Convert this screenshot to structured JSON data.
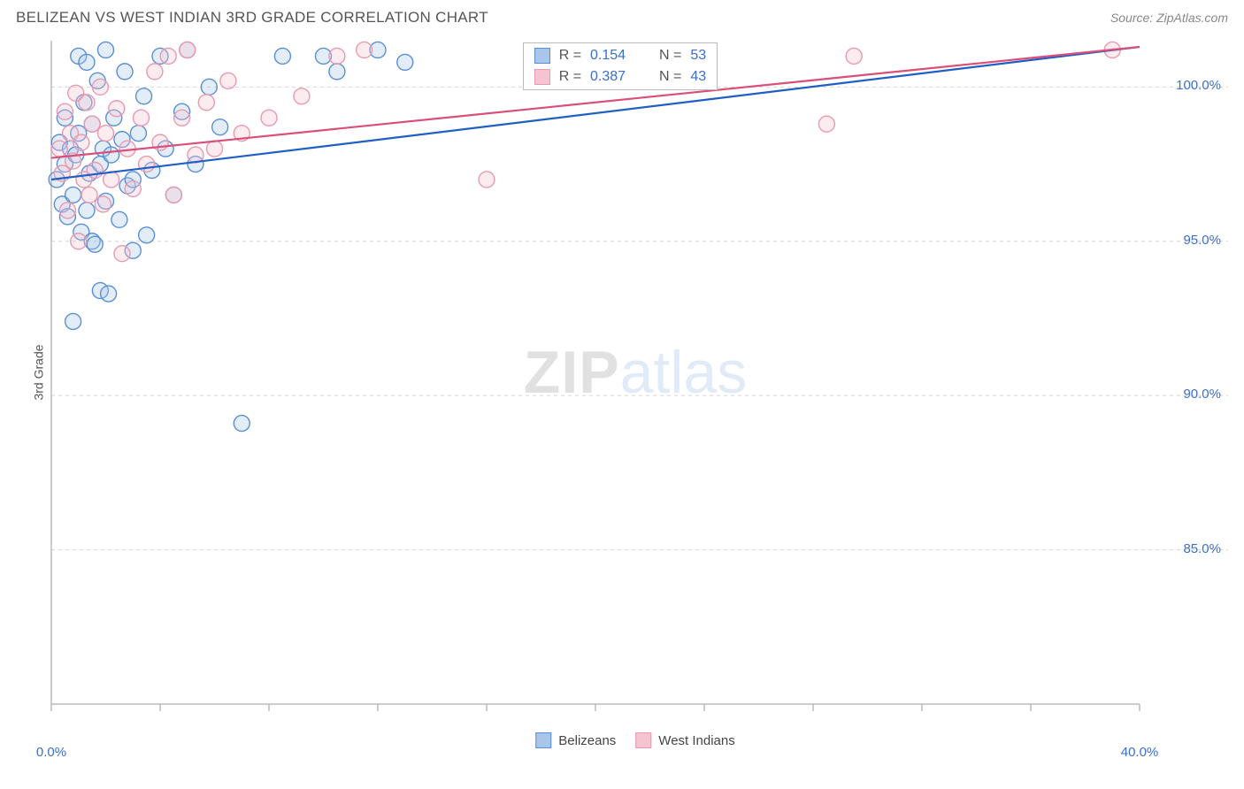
{
  "header": {
    "title": "BELIZEAN VS WEST INDIAN 3RD GRADE CORRELATION CHART",
    "source": "Source: ZipAtlas.com"
  },
  "chart": {
    "type": "scatter",
    "y_axis_label": "3rd Grade",
    "xlim": [
      0,
      40
    ],
    "ylim": [
      80,
      101.5
    ],
    "x_tick_positions": [
      0,
      4,
      8,
      12,
      16,
      20,
      24,
      28,
      32,
      36,
      40
    ],
    "x_tick_labels_visible": {
      "0": "0.0%",
      "40": "40.0%"
    },
    "y_tick_positions": [
      85,
      90,
      95,
      100
    ],
    "y_tick_labels": {
      "85": "85.0%",
      "90": "90.0%",
      "95": "95.0%",
      "100": "100.0%"
    },
    "grid_color": "#d5d5d5",
    "grid_dash": "4,4",
    "axis_line_color": "#bbbbbb",
    "background_color": "#ffffff",
    "tick_label_color": "#3b6fc9",
    "axis_label_color": "#555555",
    "tick_label_fontsize": 15,
    "marker_radius": 9,
    "marker_stroke_width": 1.4,
    "marker_fill_opacity": 0.32,
    "trendline_width": 2.2,
    "series": [
      {
        "name": "Belizeans",
        "color_stroke": "#5a8fd6",
        "color_fill": "#a9c6ea",
        "trend_color": "#1f5fc4",
        "trend_start": [
          0,
          97.0
        ],
        "trend_end": [
          40,
          101.3
        ],
        "points": [
          [
            0.2,
            97.0
          ],
          [
            0.3,
            98.2
          ],
          [
            0.4,
            96.2
          ],
          [
            0.5,
            99.0
          ],
          [
            0.5,
            97.5
          ],
          [
            0.6,
            95.8
          ],
          [
            0.7,
            98.0
          ],
          [
            0.8,
            96.5
          ],
          [
            0.8,
            92.4
          ],
          [
            0.9,
            97.8
          ],
          [
            1.0,
            101.0
          ],
          [
            1.0,
            98.5
          ],
          [
            1.1,
            95.3
          ],
          [
            1.2,
            99.5
          ],
          [
            1.3,
            100.8
          ],
          [
            1.3,
            96.0
          ],
          [
            1.4,
            97.2
          ],
          [
            1.5,
            98.8
          ],
          [
            1.5,
            95.0
          ],
          [
            1.6,
            94.9
          ],
          [
            1.7,
            100.2
          ],
          [
            1.8,
            97.5
          ],
          [
            1.8,
            93.4
          ],
          [
            1.9,
            98.0
          ],
          [
            2.0,
            96.3
          ],
          [
            2.0,
            101.2
          ],
          [
            2.1,
            93.3
          ],
          [
            2.2,
            97.8
          ],
          [
            2.3,
            99.0
          ],
          [
            2.5,
            95.7
          ],
          [
            2.6,
            98.3
          ],
          [
            2.7,
            100.5
          ],
          [
            2.8,
            96.8
          ],
          [
            3.0,
            97.0
          ],
          [
            3.0,
            94.7
          ],
          [
            3.2,
            98.5
          ],
          [
            3.4,
            99.7
          ],
          [
            3.5,
            95.2
          ],
          [
            3.7,
            97.3
          ],
          [
            4.0,
            101.0
          ],
          [
            4.2,
            98.0
          ],
          [
            4.5,
            96.5
          ],
          [
            4.8,
            99.2
          ],
          [
            5.0,
            101.2
          ],
          [
            5.3,
            97.5
          ],
          [
            5.8,
            100.0
          ],
          [
            6.2,
            98.7
          ],
          [
            7.0,
            89.1
          ],
          [
            8.5,
            101.0
          ],
          [
            10.0,
            101.0
          ],
          [
            10.5,
            100.5
          ],
          [
            12.0,
            101.2
          ],
          [
            13.0,
            100.8
          ]
        ]
      },
      {
        "name": "West Indians",
        "color_stroke": "#e89ab0",
        "color_fill": "#f6c3d1",
        "trend_color": "#d94f78",
        "trend_start": [
          0,
          97.7
        ],
        "trend_end": [
          40,
          101.3
        ],
        "points": [
          [
            0.3,
            98.0
          ],
          [
            0.4,
            97.2
          ],
          [
            0.5,
            99.2
          ],
          [
            0.6,
            96.0
          ],
          [
            0.7,
            98.5
          ],
          [
            0.8,
            97.6
          ],
          [
            0.9,
            99.8
          ],
          [
            1.0,
            95.0
          ],
          [
            1.1,
            98.2
          ],
          [
            1.2,
            97.0
          ],
          [
            1.3,
            99.5
          ],
          [
            1.4,
            96.5
          ],
          [
            1.5,
            98.8
          ],
          [
            1.6,
            97.3
          ],
          [
            1.8,
            100.0
          ],
          [
            1.9,
            96.2
          ],
          [
            2.0,
            98.5
          ],
          [
            2.2,
            97.0
          ],
          [
            2.4,
            99.3
          ],
          [
            2.6,
            94.6
          ],
          [
            2.8,
            98.0
          ],
          [
            3.0,
            96.7
          ],
          [
            3.3,
            99.0
          ],
          [
            3.5,
            97.5
          ],
          [
            3.8,
            100.5
          ],
          [
            4.0,
            98.2
          ],
          [
            4.3,
            101.0
          ],
          [
            4.5,
            96.5
          ],
          [
            4.8,
            99.0
          ],
          [
            5.0,
            101.2
          ],
          [
            5.3,
            97.8
          ],
          [
            5.7,
            99.5
          ],
          [
            6.0,
            98.0
          ],
          [
            6.5,
            100.2
          ],
          [
            7.0,
            98.5
          ],
          [
            8.0,
            99.0
          ],
          [
            9.2,
            99.7
          ],
          [
            10.5,
            101.0
          ],
          [
            11.5,
            101.2
          ],
          [
            16.0,
            97.0
          ],
          [
            28.5,
            98.8
          ],
          [
            29.5,
            101.0
          ],
          [
            39.0,
            101.2
          ]
        ]
      }
    ],
    "stats_box": {
      "left_pct": 40.5,
      "top_pct": 1.5,
      "rows": [
        {
          "swatch_stroke": "#5a8fd6",
          "swatch_fill": "#a9c6ea",
          "r_label": "R =",
          "r_value": "0.154",
          "n_label": "N =",
          "n_value": "53"
        },
        {
          "swatch_stroke": "#e89ab0",
          "swatch_fill": "#f6c3d1",
          "r_label": "R =",
          "r_value": "0.387",
          "n_label": "N =",
          "n_value": "43"
        }
      ]
    },
    "legend_bottom": [
      {
        "swatch_stroke": "#5a8fd6",
        "swatch_fill": "#a9c6ea",
        "label": "Belizeans"
      },
      {
        "swatch_stroke": "#e89ab0",
        "swatch_fill": "#f6c3d1",
        "label": "West Indians"
      }
    ],
    "watermark": {
      "zip": "ZIP",
      "atlas": "atlas"
    }
  }
}
